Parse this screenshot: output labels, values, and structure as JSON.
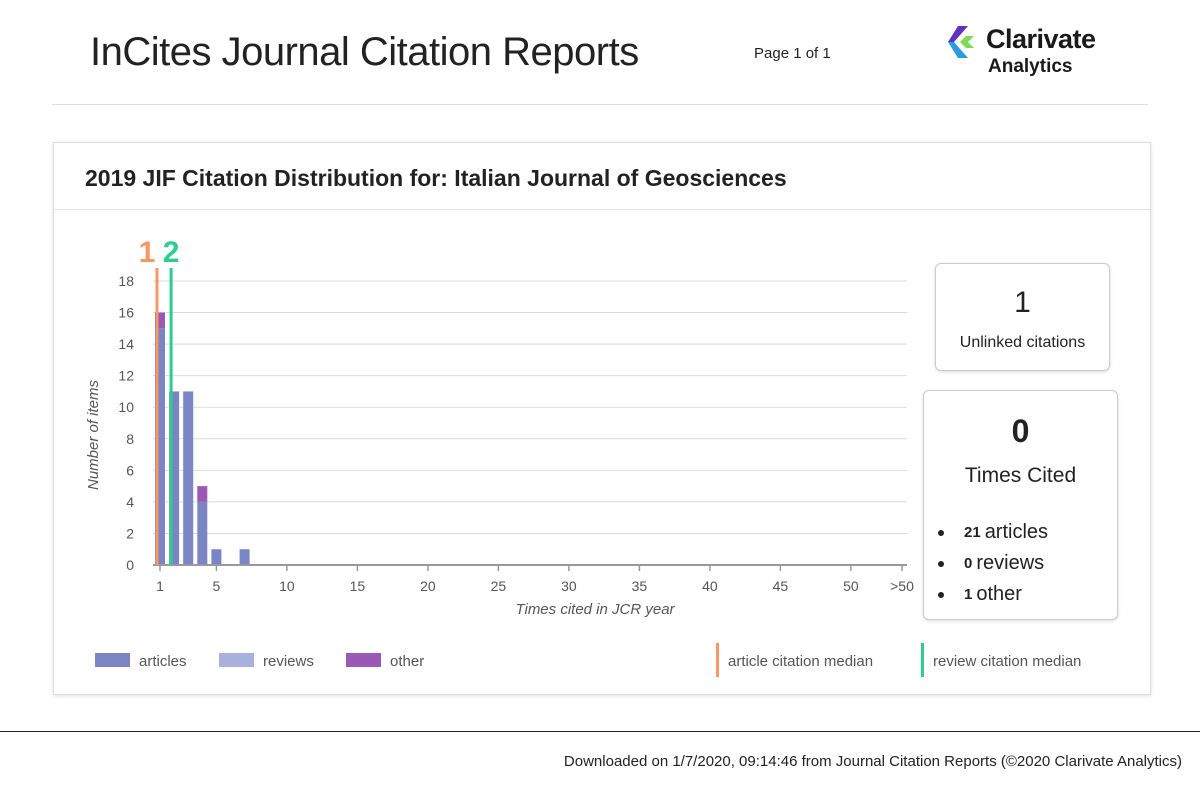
{
  "header": {
    "title": "InCites Journal Citation Reports",
    "page_indicator": "Page 1 of 1",
    "logo_line1": "Clarivate",
    "logo_line2": "Analytics"
  },
  "card": {
    "title": "2019 JIF Citation Distribution for: Italian Journal of Geosciences"
  },
  "stats": {
    "unlinked": {
      "value": "1",
      "label": "Unlinked citations"
    },
    "times_cited": {
      "value": "0",
      "label": "Times Cited",
      "items": [
        {
          "count": "21",
          "label": "articles"
        },
        {
          "count": "0",
          "label": "reviews"
        },
        {
          "count": "1",
          "label": "other"
        }
      ]
    }
  },
  "footer": {
    "text": "Downloaded on 1/7/2020, 09:14:46 from Journal Citation Reports (©2020 Clarivate Analytics)"
  },
  "colors": {
    "articles": "#7b84c4",
    "reviews": "#aab0dd",
    "other": "#9b59b6",
    "article_median": "#f59866",
    "review_median": "#2ecc8f",
    "grid": "#d9dbe8"
  },
  "chart_data": {
    "type": "bar",
    "stacked": true,
    "xlabel": "Times cited in JCR year",
    "ylabel": "Number of items",
    "ylim": [
      0,
      18
    ],
    "yticks": [
      "0",
      "2",
      "4",
      "6",
      "8",
      "10",
      "12",
      "14",
      "16",
      "18"
    ],
    "xticks": [
      "1",
      "5",
      "10",
      "15",
      "20",
      "25",
      "30",
      "35",
      "40",
      "45",
      "50",
      ">50"
    ],
    "grid": true,
    "series": [
      {
        "name": "articles",
        "points": [
          [
            0,
            15
          ],
          [
            1,
            11
          ],
          [
            2,
            11
          ],
          [
            3,
            4
          ],
          [
            4,
            1
          ],
          [
            6,
            1
          ]
        ]
      },
      {
        "name": "reviews",
        "points": []
      },
      {
        "name": "other",
        "points": [
          [
            0,
            1
          ],
          [
            3,
            1
          ]
        ]
      }
    ],
    "medians": [
      {
        "name": "article citation median",
        "value": 1,
        "label": "1"
      },
      {
        "name": "review citation median",
        "value": 2,
        "label": "2"
      }
    ]
  }
}
